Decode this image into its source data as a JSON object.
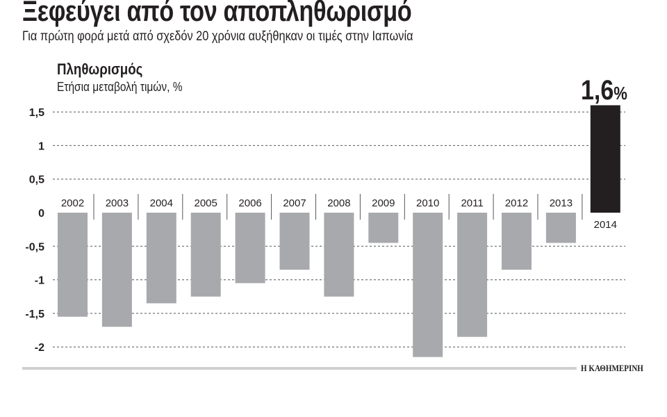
{
  "header": {
    "title": "Ξεφεύγει από τον αποπληθωρισμό",
    "subtitle": "Για πρώτη φορά μετά από σχεδόν 20 χρόνια αυξήθηκαν οι τιμές στην Ιαπωνία"
  },
  "highlight": {
    "value": "1,6",
    "unit": "%"
  },
  "source": "Η ΚΑΘΗΜΕΡΙΝΗ",
  "chart_data": {
    "type": "bar",
    "title": "Πληθωρισμός",
    "ylabel": "Ετήσια μεταβολή τιμών, %",
    "categories": [
      "2002",
      "2003",
      "2004",
      "2005",
      "2006",
      "2007",
      "2008",
      "2009",
      "2010",
      "2011",
      "2012",
      "2013",
      "2014"
    ],
    "values": [
      -1.55,
      -1.7,
      -1.35,
      -1.25,
      -1.05,
      -0.85,
      -1.25,
      -0.45,
      -2.15,
      -1.85,
      -0.85,
      -0.45,
      1.6
    ],
    "ylim": [
      -2.2,
      1.6
    ],
    "yticks": [
      1.5,
      1,
      0.5,
      0,
      -0.5,
      -1,
      -1.5,
      -2
    ],
    "ytick_labels": [
      "1,5",
      "1",
      "0,5",
      "0",
      "-0,5",
      "-1",
      "-1,5",
      "-2"
    ],
    "grid": true,
    "colors": {
      "negative": "#a7a9ac",
      "highlight": "#231f20",
      "grid": "#555555"
    }
  }
}
